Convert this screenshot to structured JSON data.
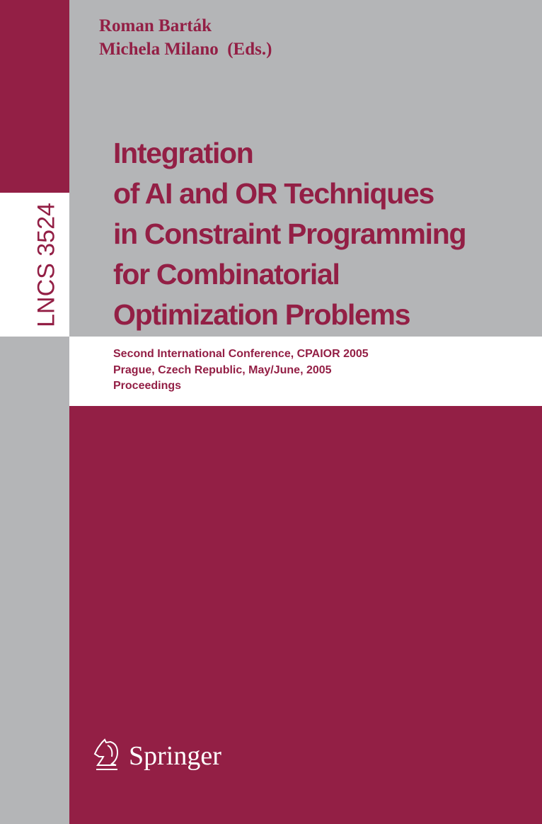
{
  "cover": {
    "series": "LNCS 3524",
    "authors": [
      "Roman Barták",
      "Michela Milano  (Eds.)"
    ],
    "title_lines": [
      "Integration",
      "of AI and OR Techniques",
      "in Constraint Programming",
      "for Combinatorial",
      "Optimization Problems"
    ],
    "subtitle_lines": [
      "Second International Conference, CPAIOR 2005",
      "Prague, Czech Republic, May/June, 2005",
      "Proceedings"
    ],
    "publisher": "Springer",
    "publisher_icon": "springer-knight-icon",
    "colors": {
      "maroon": "#931f45",
      "gray": "#b4b5b7",
      "white": "#ffffff"
    }
  }
}
